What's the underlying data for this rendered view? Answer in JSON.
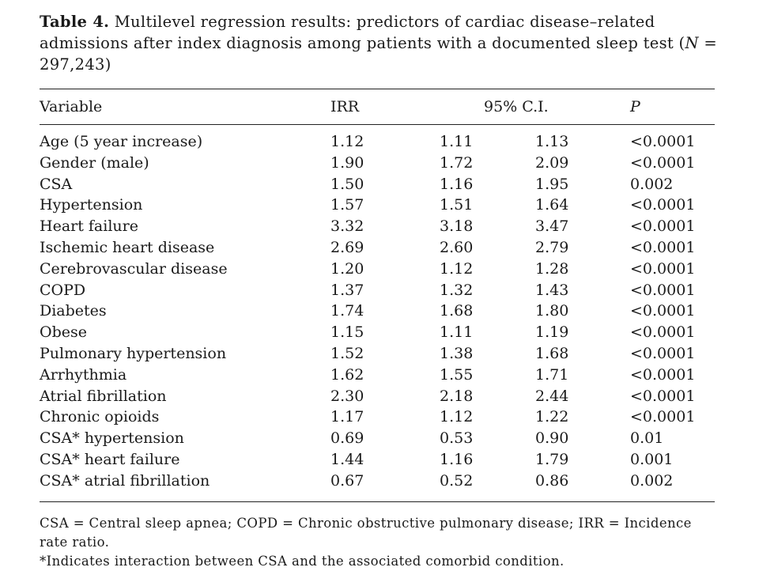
{
  "table": {
    "label": "Table 4.",
    "caption_text": "Multilevel regression results: predictors of cardiac disease–related admissions after index diagnosis among patients with a documented sleep test (",
    "n_symbol": "N",
    "n_value": " = 297,243)",
    "columns": {
      "variable": "Variable",
      "irr": "IRR",
      "ci": "95% C.I.",
      "p": "P"
    },
    "rows": [
      {
        "variable": "Age (5 year increase)",
        "irr": "1.12",
        "ci_low": "1.11",
        "ci_high": "1.13",
        "p": "<0.0001"
      },
      {
        "variable": "Gender (male)",
        "irr": "1.90",
        "ci_low": "1.72",
        "ci_high": "2.09",
        "p": "<0.0001"
      },
      {
        "variable": "CSA",
        "irr": "1.50",
        "ci_low": "1.16",
        "ci_high": "1.95",
        "p": "0.002"
      },
      {
        "variable": "Hypertension",
        "irr": "1.57",
        "ci_low": "1.51",
        "ci_high": "1.64",
        "p": "<0.0001"
      },
      {
        "variable": "Heart failure",
        "irr": "3.32",
        "ci_low": "3.18",
        "ci_high": "3.47",
        "p": "<0.0001"
      },
      {
        "variable": "Ischemic heart disease",
        "irr": "2.69",
        "ci_low": "2.60",
        "ci_high": "2.79",
        "p": "<0.0001"
      },
      {
        "variable": "Cerebrovascular disease",
        "irr": "1.20",
        "ci_low": "1.12",
        "ci_high": "1.28",
        "p": "<0.0001"
      },
      {
        "variable": "COPD",
        "irr": "1.37",
        "ci_low": "1.32",
        "ci_high": "1.43",
        "p": "<0.0001"
      },
      {
        "variable": "Diabetes",
        "irr": "1.74",
        "ci_low": "1.68",
        "ci_high": "1.80",
        "p": "<0.0001"
      },
      {
        "variable": "Obese",
        "irr": "1.15",
        "ci_low": "1.11",
        "ci_high": "1.19",
        "p": "<0.0001"
      },
      {
        "variable": "Pulmonary hypertension",
        "irr": "1.52",
        "ci_low": "1.38",
        "ci_high": "1.68",
        "p": "<0.0001"
      },
      {
        "variable": "Arrhythmia",
        "irr": "1.62",
        "ci_low": "1.55",
        "ci_high": "1.71",
        "p": "<0.0001"
      },
      {
        "variable": "Atrial fibrillation",
        "irr": "2.30",
        "ci_low": "2.18",
        "ci_high": "2.44",
        "p": "<0.0001"
      },
      {
        "variable": "Chronic opioids",
        "irr": "1.17",
        "ci_low": "1.12",
        "ci_high": "1.22",
        "p": "<0.0001"
      },
      {
        "variable": "CSA* hypertension",
        "irr": "0.69",
        "ci_low": "0.53",
        "ci_high": "0.90",
        "p": "0.01"
      },
      {
        "variable": "CSA* heart failure",
        "irr": "1.44",
        "ci_low": "1.16",
        "ci_high": "1.79",
        "p": "0.001"
      },
      {
        "variable": "CSA* atrial fibrillation",
        "irr": "0.67",
        "ci_low": "0.52",
        "ci_high": "0.86",
        "p": "0.002"
      }
    ],
    "footnotes": [
      "CSA = Central sleep apnea; COPD = Chronic obstructive pulmonary disease; IRR = Incidence rate ratio.",
      "*Indicates interaction between CSA and the associated comorbid condition."
    ]
  }
}
